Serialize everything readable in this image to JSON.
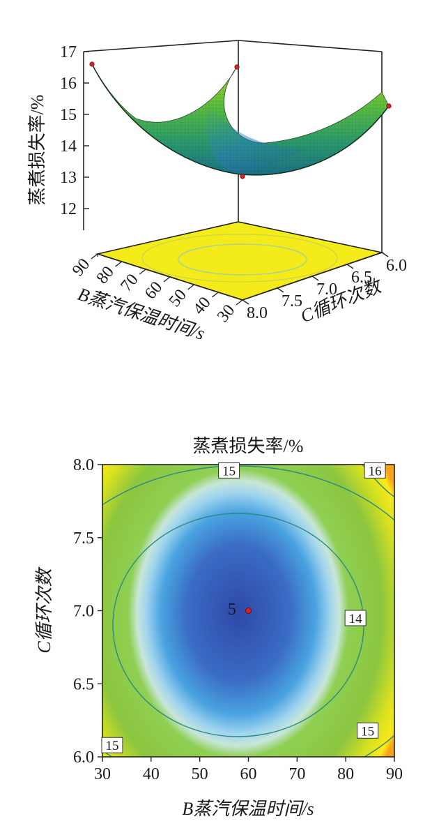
{
  "chart_data": [
    {
      "type": "surface3d",
      "zlabel": "蒸煮损失率/%",
      "xlabel": "B蒸汽保温时间/s",
      "ylabel": "C循环次数",
      "x_ticks": [
        90,
        80,
        70,
        60,
        50,
        40,
        30
      ],
      "y_ticks": [
        "8.0",
        "7.5",
        "7.0",
        "6.5",
        "6.0"
      ],
      "z_ticks": [
        12,
        13,
        14,
        15,
        16,
        17
      ],
      "xlim": [
        30,
        90
      ],
      "ylim": [
        6.0,
        8.0
      ],
      "zlim": [
        11,
        17
      ],
      "points": [
        {
          "x": 90,
          "y": 8.0,
          "z": 16.6
        },
        {
          "x": 30,
          "y": 6.0,
          "z": 16.5
        },
        {
          "x": 30,
          "y": 8.0,
          "z": 15.2
        },
        {
          "x": 60,
          "y": 7.0,
          "z": 13.2
        }
      ]
    },
    {
      "type": "contour",
      "title": "蒸煮损失率/%",
      "xlabel": "B蒸汽保温时间/s",
      "ylabel": "C循环次数",
      "xlim": [
        30,
        90
      ],
      "ylim": [
        6.0,
        8.0
      ],
      "x_ticks": [
        30,
        40,
        50,
        60,
        70,
        80,
        90
      ],
      "y_ticks": [
        "6.0",
        "6.5",
        "7.0",
        "7.5",
        "8.0"
      ],
      "contour_levels": [
        14,
        15,
        16
      ],
      "contour_labels": [
        {
          "text": "15",
          "x": 56,
          "y": 7.96
        },
        {
          "text": "16",
          "x": 86,
          "y": 7.96
        },
        {
          "text": "14",
          "x": 82,
          "y": 6.95
        },
        {
          "text": "15",
          "x": 84.5,
          "y": 6.18
        },
        {
          "text": "15",
          "x": 32,
          "y": 6.08
        }
      ],
      "center_point": {
        "label": "5",
        "x": 60,
        "y": 7.0
      }
    }
  ]
}
